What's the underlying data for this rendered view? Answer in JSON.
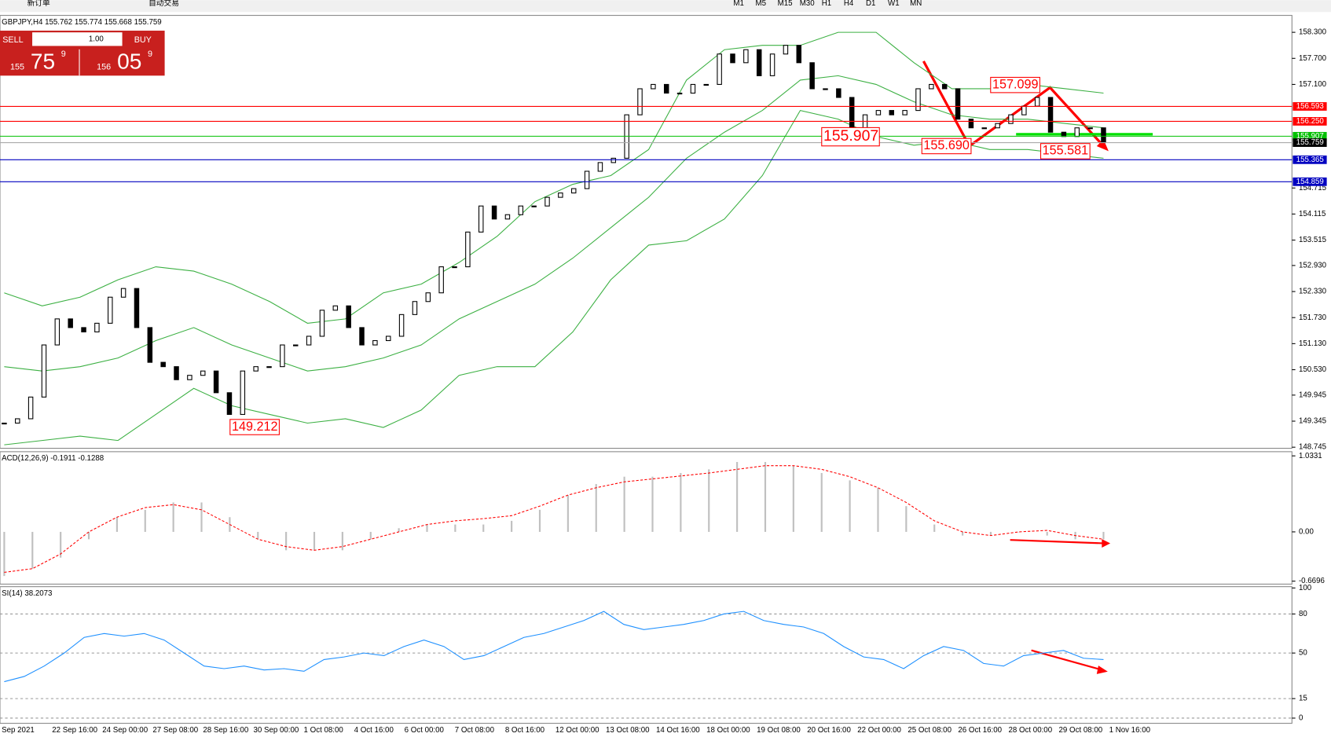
{
  "toolbar": {
    "menu": [
      "新订单",
      "自动交易"
    ],
    "timeframes": [
      "M1",
      "M5",
      "M15",
      "M30",
      "H1",
      "H4",
      "D1",
      "W1",
      "MN"
    ]
  },
  "trade_panel": {
    "sell": "SELL",
    "buy": "BUY",
    "lot": "1.00",
    "bid_big": "155",
    "bid_pips": "75",
    "bid_frac": "9",
    "ask_big": "156",
    "ask_pips": "05",
    "ask_frac": "9"
  },
  "chart_data": [
    {
      "type": "candlestick",
      "title": "GBPJPY,H4  155.762 155.774 155.668 155.759",
      "close": [
        149.3,
        149.4,
        149.9,
        151.1,
        151.7,
        151.5,
        151.4,
        151.6,
        152.2,
        152.4,
        151.5,
        150.7,
        150.6,
        150.3,
        150.4,
        150.5,
        150.0,
        149.5,
        150.5,
        150.6,
        150.6,
        151.1,
        151.1,
        151.3,
        151.9,
        152.0,
        151.5,
        151.1,
        151.2,
        151.3,
        151.8,
        152.1,
        152.3,
        152.9,
        152.9,
        153.7,
        154.3,
        154.0,
        154.1,
        154.3,
        154.3,
        154.5,
        154.6,
        154.7,
        155.1,
        155.3,
        155.4,
        156.4,
        157.0,
        157.1,
        156.9,
        156.9,
        157.1,
        157.1,
        157.8,
        157.6,
        157.9,
        157.3,
        157.8,
        158.0,
        157.6,
        157.0,
        157.0,
        156.8,
        155.9,
        156.4,
        156.5,
        156.4,
        156.5,
        157.0,
        157.1,
        157.0,
        156.3,
        156.1,
        156.1,
        156.2,
        156.4,
        156.6,
        156.8,
        156.0,
        155.9,
        156.1,
        156.1,
        155.759
      ],
      "bands": {
        "color": "#3cb043",
        "upper": [
          152.3,
          152.0,
          152.2,
          152.6,
          152.9,
          152.8,
          152.5,
          152.1,
          151.6,
          151.7,
          152.3,
          152.5,
          153.0,
          153.6,
          154.4,
          154.8,
          155.0,
          155.6,
          157.2,
          157.9,
          158.0,
          158.0,
          158.3,
          158.3,
          157.6,
          157.0,
          157.0,
          157.1,
          157.0,
          156.9
        ],
        "middle": [
          150.6,
          150.5,
          150.6,
          150.8,
          151.2,
          151.5,
          151.1,
          150.8,
          150.5,
          150.6,
          150.8,
          151.1,
          151.7,
          152.1,
          152.5,
          153.1,
          153.8,
          154.5,
          155.4,
          156.0,
          156.5,
          157.2,
          157.3,
          157.1,
          156.7,
          156.4,
          156.3,
          156.3,
          156.2,
          156.1
        ],
        "lower": [
          148.8,
          148.9,
          149.0,
          148.9,
          149.5,
          150.1,
          149.7,
          149.5,
          149.3,
          149.4,
          149.2,
          149.6,
          150.4,
          150.6,
          150.6,
          151.4,
          152.6,
          153.4,
          153.5,
          154.0,
          155.0,
          156.5,
          156.3,
          155.9,
          155.7,
          155.8,
          155.6,
          155.6,
          155.5,
          155.4
        ]
      },
      "levels": {
        "values": [
          156.593,
          156.25,
          155.907,
          155.759,
          155.365,
          154.859
        ],
        "value_labels": [
          "156.593",
          "156.250",
          "155.907",
          "155.759",
          "155.365",
          "154.859"
        ],
        "colors": [
          "#ff0000",
          "#ff0000",
          "#00c000",
          "#000000",
          "#0000c0",
          "#0000c0"
        ]
      },
      "annotations": [
        "157.099",
        "155.907",
        "155.690",
        "155.581",
        "149.212"
      ],
      "ylim": [
        148.72,
        158.69
      ],
      "yticks": [
        {
          "value": 158.3,
          "label": "158.300"
        },
        {
          "value": 157.7,
          "label": "157.700"
        },
        {
          "value": 157.1,
          "label": "157.100"
        },
        154.715,
        154.115,
        153.515,
        {
          "value": 152.93,
          "label": "152.930"
        },
        {
          "value": 152.33,
          "label": "152.330"
        },
        {
          "value": 151.73,
          "label": "151.730"
        },
        {
          "value": 151.13,
          "label": "151.130"
        },
        {
          "value": 150.53,
          "label": "150.530"
        },
        149.945,
        149.345,
        148.745
      ],
      "time_labels": [
        "Sep 2021",
        "22 Sep 16:00",
        "24 Sep 00:00",
        "27 Sep 08:00",
        "28 Sep 16:00",
        "30 Sep 00:00",
        "1 Oct 08:00",
        "4 Oct 16:00",
        "6 Oct 00:00",
        "7 Oct 08:00",
        "8 Oct 16:00",
        "12 Oct 00:00",
        "13 Oct 08:00",
        "14 Oct 16:00",
        "18 Oct 00:00",
        "19 Oct 08:00",
        "20 Oct 16:00",
        "22 Oct 00:00",
        "25 Oct 08:00",
        "26 Oct 16:00",
        "28 Oct 00:00",
        "29 Oct 08:00",
        "1 Nov 16:00"
      ]
    },
    {
      "type": "macd",
      "title": "ACD(12,26,9) -0.1911 -0.1288",
      "histogram": [
        -0.6,
        -0.5,
        -0.35,
        -0.1,
        0.2,
        0.3,
        0.4,
        0.4,
        0.2,
        -0.1,
        -0.25,
        -0.25,
        -0.25,
        -0.1,
        0.05,
        0.1,
        0.1,
        0.1,
        0.15,
        0.3,
        0.5,
        0.65,
        0.75,
        0.75,
        0.8,
        0.85,
        0.95,
        0.95,
        0.9,
        0.8,
        0.7,
        0.6,
        0.35,
        0.1,
        -0.05,
        -0.05,
        0.0,
        -0.05,
        -0.1,
        -0.1
      ],
      "signal": [
        -0.55,
        -0.5,
        -0.3,
        0.0,
        0.2,
        0.33,
        0.37,
        0.3,
        0.1,
        -0.1,
        -0.2,
        -0.25,
        -0.2,
        -0.1,
        0.0,
        0.1,
        0.15,
        0.18,
        0.22,
        0.35,
        0.5,
        0.6,
        0.68,
        0.72,
        0.76,
        0.8,
        0.85,
        0.9,
        0.9,
        0.85,
        0.75,
        0.6,
        0.4,
        0.15,
        0.0,
        -0.05,
        0.0,
        0.02,
        -0.05,
        -0.1
      ],
      "histogram_color": "#c0c0c0",
      "signal_color": "#ff0000",
      "ylim": [
        -0.71,
        1.09
      ],
      "yticks": [
        1.0331,
        {
          "value": 0,
          "label": "0.00"
        },
        -0.6696
      ]
    },
    {
      "type": "line",
      "title": "SI(14) 38.2073",
      "values": [
        28,
        32,
        40,
        50,
        62,
        65,
        63,
        65,
        60,
        50,
        40,
        38,
        40,
        37,
        38,
        36,
        45,
        47,
        50,
        48,
        55,
        60,
        55,
        45,
        48,
        55,
        62,
        65,
        70,
        75,
        82,
        72,
        68,
        70,
        72,
        75,
        80,
        82,
        75,
        72,
        70,
        65,
        55,
        47,
        45,
        38,
        48,
        55,
        52,
        42,
        40,
        48,
        50,
        52,
        46,
        45
      ],
      "color": "#1e90ff",
      "ylim": [
        -4,
        101
      ],
      "yticks": [
        100,
        80,
        50,
        15,
        0
      ]
    }
  ]
}
